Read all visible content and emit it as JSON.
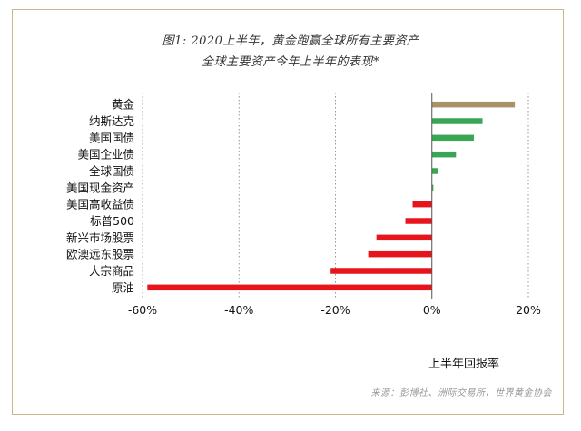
{
  "title_line1": "图1: 2020上半年，黄金跑赢全球所有主要资产",
  "title_line2": "全球主要资产今年上半年的表现*",
  "source": "来源：彭博社、洲际交易所，世界黄金协会",
  "colors": {
    "gold": "#a99268",
    "positive": "#3aa655",
    "negative": "#e8141b",
    "grid": "#8a8a8a",
    "frame": "#c9b98a"
  },
  "chart_data": {
    "type": "bar",
    "orientation": "horizontal",
    "categories": [
      "黄金",
      "纳斯达克",
      "美国国债",
      "美国企业债",
      "全球国债",
      "美国现金资产",
      "美国高收益债",
      "标普500",
      "新兴市场股票",
      "欧澳远东股票",
      "大宗商品",
      "原油"
    ],
    "values": [
      17.2,
      10.5,
      8.7,
      5.0,
      1.2,
      0.3,
      -4.0,
      -5.5,
      -11.5,
      -13.2,
      -21.0,
      -59.0
    ],
    "xlim": [
      -60,
      20
    ],
    "xticks": [
      -60,
      -40,
      -20,
      0,
      20
    ],
    "xtick_labels": [
      "-60%",
      "-40%",
      "-20%",
      "0%",
      "20%"
    ],
    "xlabel": "上半年回报率",
    "grid": "vertical dashed"
  }
}
